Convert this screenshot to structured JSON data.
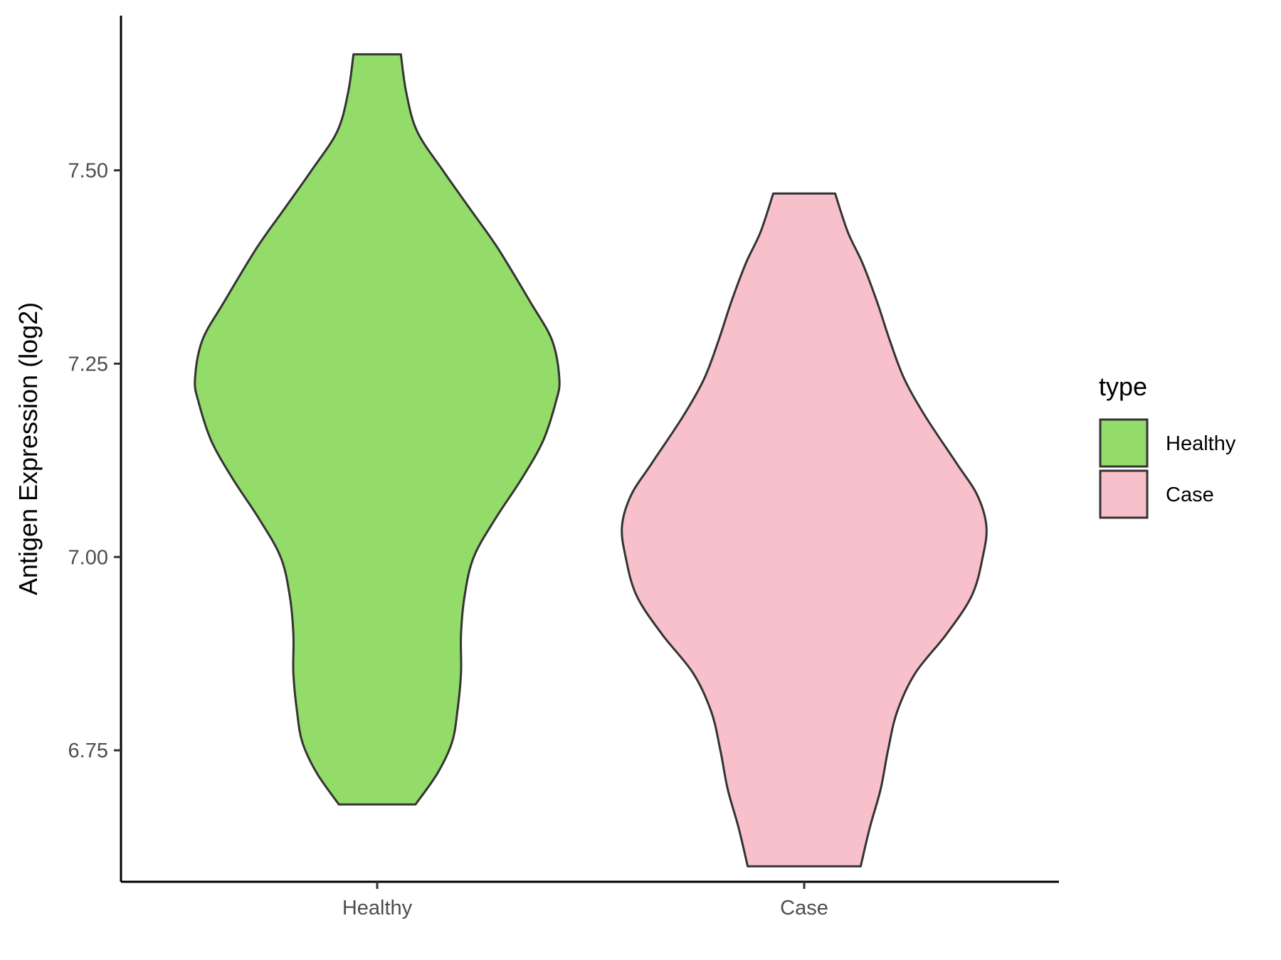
{
  "chart_data": {
    "type": "violin",
    "ylabel": "Antigen Expression (log2)",
    "xlabel": "",
    "categories": [
      "Healthy",
      "Case"
    ],
    "y_ticks": [
      {
        "value": 6.75,
        "label": "6.75"
      },
      {
        "value": 7.0,
        "label": "7.00"
      },
      {
        "value": 7.25,
        "label": "7.25"
      },
      {
        "value": 7.5,
        "label": "7.50"
      }
    ],
    "ylim": [
      6.58,
      7.7
    ],
    "grid": false,
    "legend": {
      "title": "type",
      "position": "right",
      "entries": [
        {
          "label": "Healthy",
          "color": "#93DC6A"
        },
        {
          "label": "Case",
          "color": "#F8C0CB"
        }
      ]
    },
    "series": [
      {
        "category": "Healthy",
        "color": "#93DC6A",
        "min": 6.68,
        "max": 7.65,
        "density_profile": [
          [
            6.68,
            0.21
          ],
          [
            6.72,
            0.33
          ],
          [
            6.76,
            0.41
          ],
          [
            6.8,
            0.44
          ],
          [
            6.85,
            0.46
          ],
          [
            6.9,
            0.46
          ],
          [
            6.95,
            0.48
          ],
          [
            7.0,
            0.53
          ],
          [
            7.05,
            0.65
          ],
          [
            7.1,
            0.79
          ],
          [
            7.15,
            0.91
          ],
          [
            7.2,
            0.98
          ],
          [
            7.23,
            1.0
          ],
          [
            7.28,
            0.96
          ],
          [
            7.33,
            0.84
          ],
          [
            7.4,
            0.66
          ],
          [
            7.45,
            0.51
          ],
          [
            7.5,
            0.36
          ],
          [
            7.55,
            0.22
          ],
          [
            7.6,
            0.16
          ],
          [
            7.65,
            0.13
          ]
        ]
      },
      {
        "category": "Case",
        "color": "#F8C0CB",
        "min": 6.6,
        "max": 7.47,
        "density_profile": [
          [
            6.6,
            0.31
          ],
          [
            6.65,
            0.36
          ],
          [
            6.7,
            0.42
          ],
          [
            6.75,
            0.46
          ],
          [
            6.8,
            0.51
          ],
          [
            6.85,
            0.61
          ],
          [
            6.9,
            0.78
          ],
          [
            6.95,
            0.92
          ],
          [
            7.0,
            0.98
          ],
          [
            7.04,
            1.0
          ],
          [
            7.08,
            0.95
          ],
          [
            7.12,
            0.84
          ],
          [
            7.18,
            0.67
          ],
          [
            7.23,
            0.55
          ],
          [
            7.28,
            0.47
          ],
          [
            7.33,
            0.4
          ],
          [
            7.38,
            0.32
          ],
          [
            7.42,
            0.24
          ],
          [
            7.47,
            0.17
          ]
        ]
      }
    ]
  }
}
